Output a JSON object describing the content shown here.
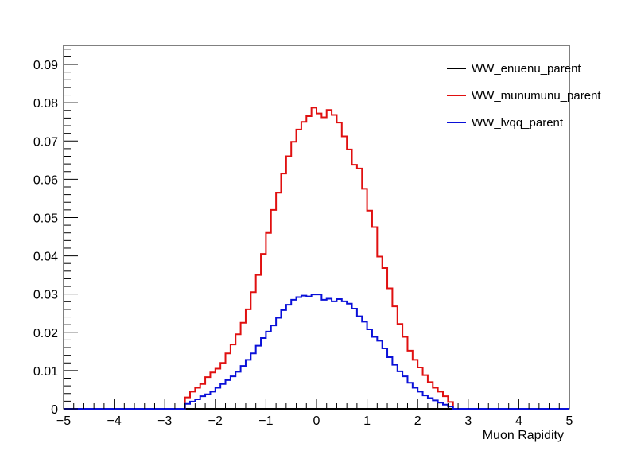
{
  "chart_data": {
    "type": "line",
    "style": "step-histogram",
    "title": "",
    "xlabel": "Muon Rapidity",
    "ylabel": "",
    "xlim": [
      -5,
      5
    ],
    "ylim": [
      0,
      0.095
    ],
    "x_ticks": [
      -5,
      -4,
      -3,
      -2,
      -1,
      0,
      1,
      2,
      3,
      4,
      5
    ],
    "y_ticks": [
      0,
      0.01,
      0.02,
      0.03,
      0.04,
      0.05,
      0.06,
      0.07,
      0.08,
      0.09
    ],
    "x_tick_labels": [
      "−5",
      "−4",
      "−3",
      "−2",
      "−1",
      "0",
      "1",
      "2",
      "3",
      "4",
      "5"
    ],
    "y_tick_labels": [
      "0",
      "0.01",
      "0.02",
      "0.03",
      "0.04",
      "0.05",
      "0.06",
      "0.07",
      "0.08",
      "0.09"
    ],
    "bin_width": 0.1,
    "bin_start": -5,
    "grid": false,
    "legend_placement": "top-right",
    "legend": [
      {
        "name": "WW_enuenu_parent",
        "color": "#000000"
      },
      {
        "name": "WW_munumunu_parent",
        "color": "#e01010"
      },
      {
        "name": "WW_lvqq_parent",
        "color": "#0a10d8"
      }
    ],
    "series": [
      {
        "name": "WW_enuenu_parent",
        "color": "#000000",
        "values": [
          0,
          0,
          0,
          0,
          0,
          0,
          0,
          0,
          0,
          0,
          0,
          0,
          0,
          0,
          0,
          0,
          0,
          0,
          0,
          0,
          0,
          0,
          0,
          0,
          0,
          0,
          0,
          0,
          0,
          0,
          0,
          0,
          0,
          0,
          0,
          0,
          0,
          0,
          0,
          0,
          0,
          0,
          0,
          0,
          0,
          0,
          0,
          0,
          0,
          0,
          0,
          0,
          0,
          0,
          0,
          0,
          0,
          0,
          0,
          0,
          0,
          0,
          0,
          0,
          0,
          0,
          0,
          0,
          0,
          0,
          0,
          0,
          0,
          0,
          0,
          0,
          0,
          0,
          0,
          0,
          0,
          0,
          0,
          0,
          0,
          0,
          0,
          0,
          0,
          0,
          0,
          0,
          0,
          0,
          0,
          0,
          0,
          0,
          0,
          0
        ]
      },
      {
        "name": "WW_munumunu_parent",
        "color": "#e01010",
        "values": [
          0,
          0,
          0,
          0,
          0,
          0,
          0,
          0,
          0,
          0,
          0,
          0,
          0,
          0,
          0,
          0,
          0,
          0,
          0,
          0,
          0,
          0,
          0,
          0,
          0.003,
          0.0045,
          0.0055,
          0.0065,
          0.0083,
          0.0095,
          0.0105,
          0.012,
          0.0145,
          0.0168,
          0.0195,
          0.0225,
          0.026,
          0.0305,
          0.035,
          0.0405,
          0.046,
          0.052,
          0.0565,
          0.0615,
          0.066,
          0.0698,
          0.073,
          0.075,
          0.0765,
          0.0787,
          0.0772,
          0.0762,
          0.0781,
          0.0768,
          0.0748,
          0.0712,
          0.0678,
          0.0638,
          0.0628,
          0.0575,
          0.0518,
          0.0475,
          0.0398,
          0.0368,
          0.0315,
          0.0268,
          0.0222,
          0.0188,
          0.0152,
          0.0128,
          0.0108,
          0.0088,
          0.007,
          0.0055,
          0.0045,
          0.0033,
          0.0018,
          0,
          0,
          0,
          0,
          0,
          0,
          0,
          0,
          0,
          0,
          0,
          0,
          0,
          0,
          0,
          0,
          0,
          0,
          0,
          0,
          0,
          0,
          0
        ]
      },
      {
        "name": "WW_lvqq_parent",
        "color": "#0a10d8",
        "values": [
          0,
          0,
          0,
          0,
          0,
          0,
          0,
          0,
          0,
          0,
          0,
          0,
          0,
          0,
          0,
          0,
          0,
          0,
          0,
          0,
          0,
          0,
          0,
          0,
          0.0013,
          0.0019,
          0.0025,
          0.0033,
          0.0038,
          0.0045,
          0.0055,
          0.0065,
          0.0075,
          0.0085,
          0.0097,
          0.0112,
          0.0128,
          0.0145,
          0.0165,
          0.0185,
          0.0202,
          0.0218,
          0.0238,
          0.0258,
          0.0272,
          0.0285,
          0.0292,
          0.0296,
          0.0294,
          0.0299,
          0.0299,
          0.0285,
          0.0288,
          0.0281,
          0.0287,
          0.0281,
          0.0275,
          0.0262,
          0.0242,
          0.0228,
          0.0208,
          0.0188,
          0.0178,
          0.0158,
          0.0135,
          0.0115,
          0.0098,
          0.0085,
          0.0068,
          0.0055,
          0.0045,
          0.0035,
          0.0028,
          0.0022,
          0.0016,
          0.0011,
          0.0006,
          0,
          0,
          0,
          0,
          0,
          0,
          0,
          0,
          0,
          0,
          0,
          0,
          0,
          0,
          0,
          0,
          0,
          0,
          0,
          0,
          0,
          0,
          0
        ]
      }
    ]
  }
}
